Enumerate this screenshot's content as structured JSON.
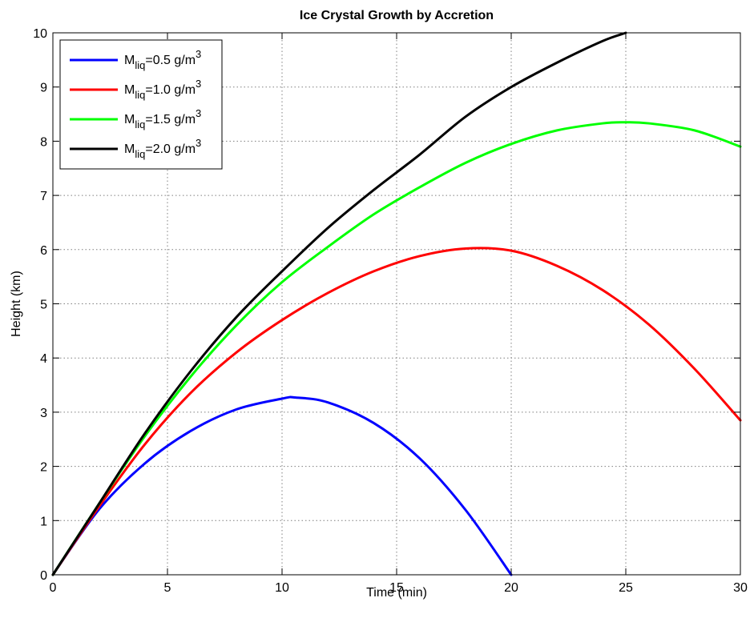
{
  "chart_data": {
    "type": "line",
    "title": "Ice Crystal Growth by Accretion",
    "xlabel": "Time (min)",
    "ylabel": "Height (km)",
    "xlim": [
      0,
      30
    ],
    "ylim": [
      0,
      10
    ],
    "xticks": [
      0,
      5,
      10,
      15,
      20,
      25,
      30
    ],
    "yticks": [
      0,
      1,
      2,
      3,
      4,
      5,
      6,
      7,
      8,
      9,
      10
    ],
    "grid": true,
    "legend_position": "top-left",
    "series": [
      {
        "name": "M_liq=0.5 g/m^3",
        "legend": {
          "prefix": "M",
          "sub": "liq",
          "mid": "=0.5 g/m",
          "sup": "3"
        },
        "color": "#0000ff",
        "x": [
          0,
          2,
          4,
          6,
          8,
          10,
          10.6,
          12,
          14,
          16,
          18,
          20
        ],
        "y": [
          0,
          1.2,
          2.05,
          2.65,
          3.05,
          3.25,
          3.27,
          3.18,
          2.8,
          2.15,
          1.2,
          0
        ]
      },
      {
        "name": "M_liq=1.0 g/m^3",
        "legend": {
          "prefix": "M",
          "sub": "liq",
          "mid": "=1.0 g/m",
          "sup": "3"
        },
        "color": "#ff0000",
        "x": [
          0,
          2,
          4,
          6,
          8,
          10,
          12,
          14,
          16,
          18,
          20,
          22,
          24,
          26,
          28,
          30
        ],
        "y": [
          0,
          1.25,
          2.4,
          3.35,
          4.1,
          4.7,
          5.2,
          5.6,
          5.88,
          6.02,
          5.98,
          5.7,
          5.25,
          4.62,
          3.8,
          2.85
        ]
      },
      {
        "name": "M_liq=1.5 g/m^3",
        "legend": {
          "prefix": "M",
          "sub": "liq",
          "mid": "=1.5 g/m",
          "sup": "3"
        },
        "color": "#00ff00",
        "x": [
          0,
          2,
          4,
          6,
          8,
          10,
          12,
          14,
          16,
          18,
          20,
          22,
          24,
          25,
          26,
          28,
          30
        ],
        "y": [
          0,
          1.3,
          2.55,
          3.65,
          4.6,
          5.4,
          6.05,
          6.65,
          7.15,
          7.6,
          7.95,
          8.2,
          8.33,
          8.35,
          8.33,
          8.2,
          7.9
        ]
      },
      {
        "name": "M_liq=2.0 g/m^3",
        "legend": {
          "prefix": "M",
          "sub": "liq",
          "mid": "=2.0 g/m",
          "sup": "3"
        },
        "color": "#000000",
        "x": [
          0,
          2,
          4,
          6,
          8,
          10,
          12,
          14,
          16,
          18,
          20,
          22,
          24,
          25
        ],
        "y": [
          0,
          1.3,
          2.6,
          3.75,
          4.75,
          5.6,
          6.4,
          7.1,
          7.75,
          8.45,
          9.0,
          9.45,
          9.85,
          10.0
        ]
      }
    ]
  }
}
